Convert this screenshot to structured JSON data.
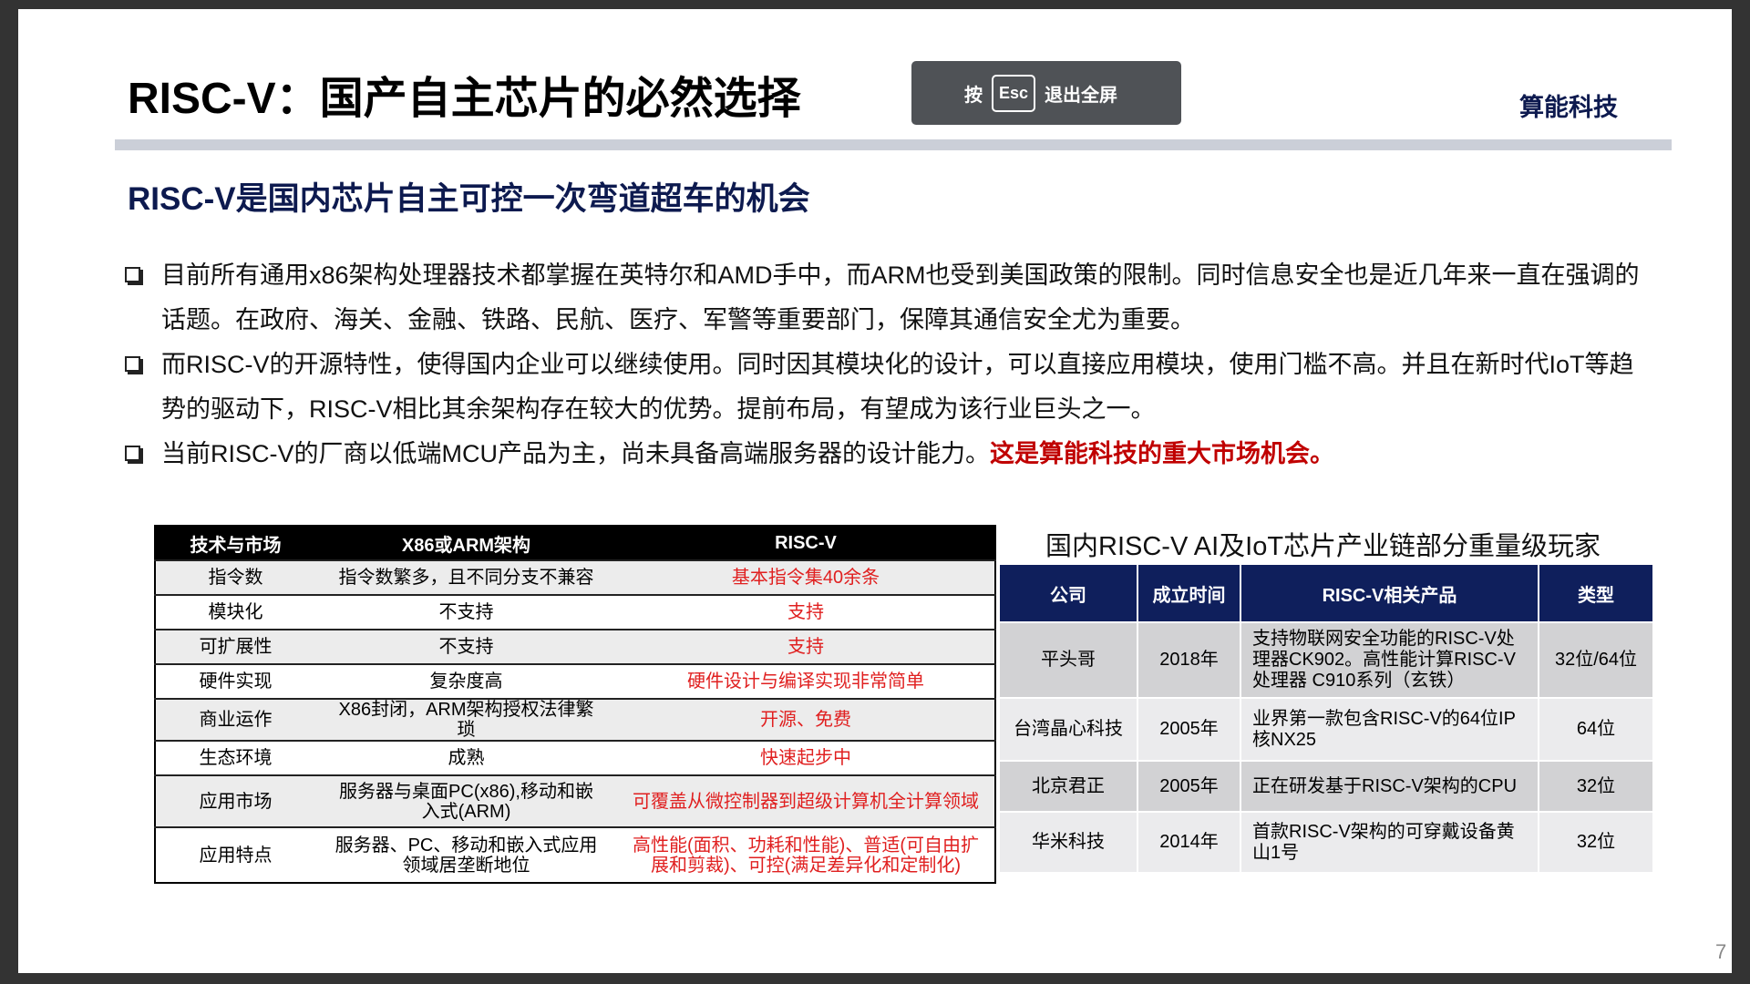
{
  "title": "RISC-V：国产自主芯片的必然选择",
  "brand": "算能科技",
  "subtitle": "RISC-V是国内芯片自主可控一次弯道超车的机会",
  "bullets": [
    {
      "text": "目前所有通用x86架构处理器技术都掌握在英特尔和AMD手中，而ARM也受到美国政策的限制。同时信息安全也是近几年来一直在强调的话题。在政府、海关、金融、铁路、民航、医疗、军警等重要部门，保障其通信安全尤为重要。",
      "highlight": ""
    },
    {
      "text": "而RISC-V的开源特性，使得国内企业可以继续使用。同时因其模块化的设计，可以直接应用模块，使用门槛不高。并且在新时代IoT等趋势的驱动下，RISC-V相比其余架构存在较大的优势。提前布局，有望成为该行业巨头之一。",
      "highlight": ""
    },
    {
      "text": "当前RISC-V的厂商以低端MCU产品为主，尚未具备高端服务器的设计能力。",
      "highlight": "这是算能科技的重大市场机会。"
    }
  ],
  "compare": {
    "headers": [
      "技术与市场",
      "X86或ARM架构",
      "RISC-V"
    ],
    "rows": [
      [
        "指令数",
        "指令数繁多，且不同分支不兼容",
        "基本指令集40余条"
      ],
      [
        "模块化",
        "不支持",
        "支持"
      ],
      [
        "可扩展性",
        "不支持",
        "支持"
      ],
      [
        "硬件实现",
        "复杂度高",
        "硬件设计与编译实现非常简单"
      ],
      [
        "商业运作",
        "X86封闭，ARM架构授权法律繁琐",
        "开源、免费"
      ],
      [
        "生态环境",
        "成熟",
        "快速起步中"
      ],
      [
        "应用市场",
        "服务器与桌面PC(x86),移动和嵌入式(ARM)",
        "可覆盖从微控制器到超级计算机全计算领域"
      ],
      [
        "应用特点",
        "服务器、PC、移动和嵌入式应用领域居垄断地位",
        "高性能(面积、功耗和性能)、普适(可自由扩展和剪裁)、可控(满足差异化和定制化)"
      ]
    ]
  },
  "players": {
    "title": "国内RISC-V AI及IoT芯片产业链部分重量级玩家",
    "headers": [
      "公司",
      "成立时间",
      "RISC-V相关产品",
      "类型"
    ],
    "rows": [
      [
        "平头哥",
        "2018年",
        "支持物联网安全功能的RISC-V处理器CK902。高性能计算RISC-V处理器 C910系列（玄铁）",
        "32位/64位"
      ],
      [
        "台湾晶心科技",
        "2005年",
        "业界第一款包含RISC-V的64位IP核NX25",
        "64位"
      ],
      [
        "北京君正",
        "2005年",
        "正在研发基于RISC-V架构的CPU",
        "32位"
      ],
      [
        "华米科技",
        "2014年",
        "首款RISC-V架构的可穿戴设备黄山1号",
        "32位"
      ]
    ]
  },
  "overlay": {
    "pre": "按",
    "key": "Esc",
    "post": "退出全屏"
  },
  "page_number": "7",
  "colors": {
    "navy": "#0f1f5c",
    "highlight_red": "#c00000"
  }
}
